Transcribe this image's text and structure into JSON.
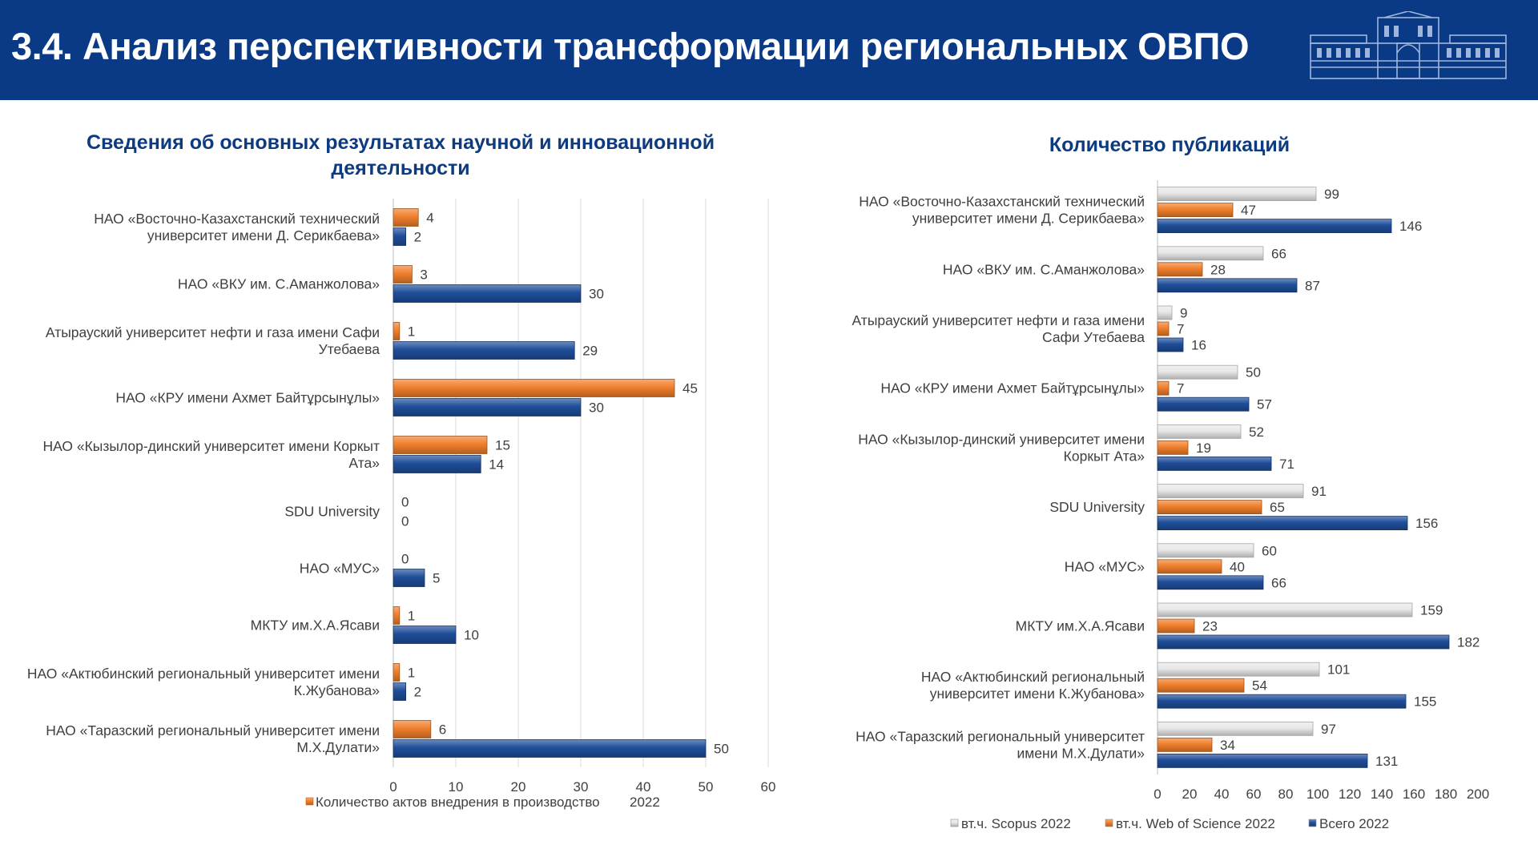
{
  "header": {
    "title": "3.4. Анализ перспективности трансформации региональных ОВПО"
  },
  "colors": {
    "header_bg": "#0a3a86",
    "title_blue": "#0d3b80",
    "orange": "#f07f2c",
    "blue": "#1f4e9a",
    "gray": "#e8e8e8",
    "gridline": "#d9d9d9"
  },
  "chart_data": [
    {
      "type": "bar",
      "orientation": "horizontal",
      "title": "Сведения об основных результатах научной и инновационной деятельности",
      "title_lines": [
        "Сведения об основных результатах научной и инновационной",
        "деятельности"
      ],
      "categories": [
        [
          "НАО «Восточно-Казахстанский технический",
          "университет имени Д. Серикбаева»"
        ],
        [
          "НАО «ВКУ им. С.Аманжолова»"
        ],
        [
          "Атырауский университет нефти и газа имени Сафи",
          "Утебаева"
        ],
        [
          "НАО «КРУ имени Ахмет Байтұрсынұлы»"
        ],
        [
          "НАО «Кызылор-динский университет имени Коркыт",
          "Ата»"
        ],
        [
          "SDU University"
        ],
        [
          "НАО «МУС»"
        ],
        [
          "МКТУ им.Х.А.Ясави"
        ],
        [
          "НАО «Актюбинский региональный университет имени",
          "К.Жубанова»"
        ],
        [
          "НАО «Таразский региональный университет имени",
          "М.Х.Дулати»"
        ]
      ],
      "series": [
        {
          "name": "Количество актов внедрения в производство 2022",
          "color": "#f07f2c",
          "values": [
            4,
            3,
            1,
            45,
            15,
            0,
            0,
            1,
            1,
            6
          ]
        },
        {
          "color": "#1f4e9a",
          "values": [
            2,
            30,
            29,
            30,
            14,
            0,
            5,
            10,
            2,
            50
          ]
        }
      ],
      "xlim": [
        0,
        60
      ],
      "xticks": [
        0,
        10,
        20,
        30,
        40,
        50,
        60
      ],
      "grid": true,
      "legend": "bottom",
      "legend_entries": [
        {
          "label": "Количество актов внедрения в производство",
          "color": "#f07f2c"
        },
        {
          "label": "2022"
        }
      ]
    },
    {
      "type": "bar",
      "orientation": "horizontal",
      "title": "Количество публикаций",
      "categories": [
        [
          "НАО «Восточно-Казахстанский технический",
          "университет имени Д. Серикбаева»"
        ],
        [
          "НАО «ВКУ им. С.Аманжолова»"
        ],
        [
          "Атырауский университет нефти и газа имени",
          "Сафи Утебаева"
        ],
        [
          "НАО «КРУ имени Ахмет Байтұрсынұлы»"
        ],
        [
          "НАО «Кызылор-динский университет имени",
          "Коркыт Ата»"
        ],
        [
          "SDU University"
        ],
        [
          "НАО «МУС»"
        ],
        [
          "МКТУ им.Х.А.Ясави"
        ],
        [
          "НАО «Актюбинский региональный",
          "университет имени К.Жубанова»"
        ],
        [
          "НАО «Таразский региональный университет",
          "имени М.Х.Дулати»"
        ]
      ],
      "series": [
        {
          "name": "вт.ч. Scopus 2022",
          "color": "#e8e8e8",
          "values": [
            99,
            66,
            9,
            50,
            52,
            91,
            60,
            159,
            101,
            97
          ]
        },
        {
          "name": "вт.ч. Web of Science 2022",
          "color": "#f07f2c",
          "values": [
            47,
            28,
            7,
            7,
            19,
            65,
            40,
            23,
            54,
            34
          ]
        },
        {
          "name": "Всего 2022",
          "color": "#1f4e9a",
          "values": [
            146,
            87,
            16,
            57,
            71,
            156,
            66,
            182,
            155,
            131
          ]
        }
      ],
      "xlim": [
        0,
        200
      ],
      "xticks": [
        0,
        20,
        40,
        60,
        80,
        100,
        120,
        140,
        160,
        180,
        200
      ],
      "grid": false,
      "legend": "bottom"
    }
  ]
}
